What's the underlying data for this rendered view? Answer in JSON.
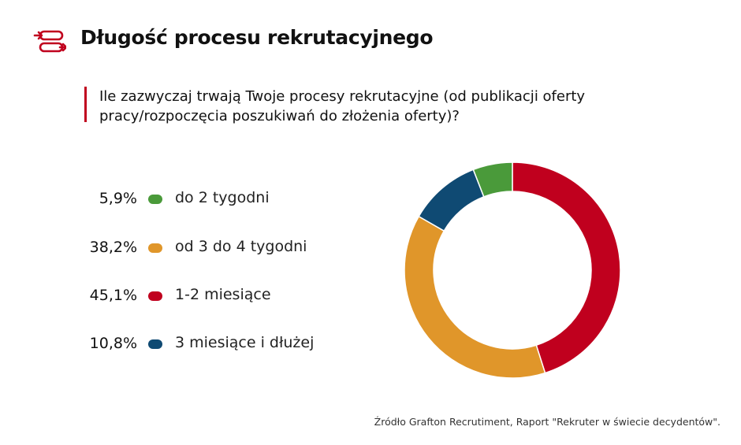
{
  "title": "Długość procesu rekrutacyjnego",
  "question": "Ile zazwyczaj trwają Twoje procesy rekrutacyjne (od publikacji oferty pracy/rozpoczęcia poszukiwań do złożenia oferty)?",
  "source": "Źródło Grafton Recrutiment, Raport \"Rekruter w świecie decydentów\".",
  "colors": {
    "accent": "#c0001e"
  },
  "chart_data": {
    "type": "pie",
    "donut": true,
    "categories": [
      "do 2 tygodni",
      "od 3 do 4 tygodni",
      "1-2 miesiące",
      "3 miesiące i dłużej"
    ],
    "values": [
      5.9,
      38.2,
      45.1,
      10.8
    ],
    "value_labels": [
      "5,9%",
      "38,2%",
      "45,1%",
      "10,8%"
    ],
    "unit": "%",
    "colors": [
      "#4a9a3a",
      "#e0962a",
      "#c0001e",
      "#0f4a73"
    ],
    "slice_order": [
      2,
      1,
      3,
      0
    ],
    "legend_placement": "left"
  }
}
